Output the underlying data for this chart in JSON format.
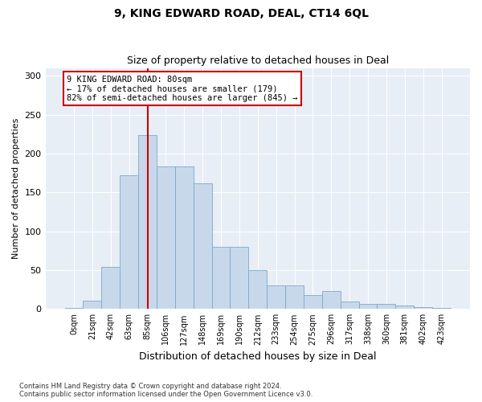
{
  "title1": "9, KING EDWARD ROAD, DEAL, CT14 6QL",
  "title2": "Size of property relative to detached houses in Deal",
  "xlabel": "Distribution of detached houses by size in Deal",
  "ylabel": "Number of detached properties",
  "bin_labels": [
    "0sqm",
    "21sqm",
    "42sqm",
    "63sqm",
    "85sqm",
    "106sqm",
    "127sqm",
    "148sqm",
    "169sqm",
    "190sqm",
    "212sqm",
    "233sqm",
    "254sqm",
    "275sqm",
    "296sqm",
    "317sqm",
    "338sqm",
    "360sqm",
    "381sqm",
    "402sqm",
    "423sqm"
  ],
  "bar_values": [
    1,
    11,
    54,
    172,
    224,
    183,
    183,
    162,
    80,
    80,
    50,
    30,
    30,
    18,
    23,
    10,
    7,
    7,
    4,
    2,
    1
  ],
  "bar_color": "#c8d8eb",
  "bar_edge_color": "#7aaac8",
  "vline_x": 4,
  "vline_color": "#cc0000",
  "annotation_text": "9 KING EDWARD ROAD: 80sqm\n← 17% of detached houses are smaller (179)\n82% of semi-detached houses are larger (845) →",
  "annotation_box_facecolor": "#ffffff",
  "annotation_box_edgecolor": "#cc0000",
  "ylim": [
    0,
    310
  ],
  "yticks": [
    0,
    50,
    100,
    150,
    200,
    250,
    300
  ],
  "footer": "Contains HM Land Registry data © Crown copyright and database right 2024.\nContains public sector information licensed under the Open Government Licence v3.0.",
  "bg_color": "#ffffff",
  "plot_bg_color": "#e8eef5",
  "grid_color": "#ffffff",
  "title1_fontsize": 10,
  "title2_fontsize": 9
}
